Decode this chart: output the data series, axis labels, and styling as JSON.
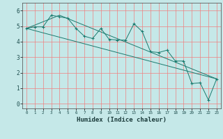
{
  "xlabel": "Humidex (Indice chaleur)",
  "bg_color": "#c5e8e8",
  "grid_color": "#f08080",
  "line_color": "#1a7a6e",
  "x_ticks": [
    0,
    1,
    2,
    3,
    4,
    5,
    6,
    7,
    8,
    9,
    10,
    11,
    12,
    13,
    14,
    15,
    16,
    17,
    18,
    19,
    20,
    21,
    22,
    23
  ],
  "y_ticks": [
    0,
    1,
    2,
    3,
    4,
    5,
    6
  ],
  "ylim": [
    -0.3,
    6.5
  ],
  "xlim": [
    -0.5,
    23.5
  ],
  "series1_x": [
    0,
    1,
    2,
    3,
    4,
    5,
    6,
    7,
    8,
    9,
    10,
    11,
    12,
    13,
    14,
    15,
    16,
    17,
    18,
    19,
    20,
    21,
    22,
    23
  ],
  "series1_y": [
    4.85,
    4.95,
    4.95,
    5.7,
    5.6,
    5.5,
    4.85,
    4.35,
    4.2,
    4.85,
    4.15,
    4.1,
    4.1,
    5.15,
    4.65,
    3.35,
    3.3,
    3.45,
    2.75,
    2.75,
    1.3,
    1.35,
    0.25,
    1.6
  ],
  "series2_x": [
    0,
    23
  ],
  "series2_y": [
    4.85,
    1.6
  ],
  "series3_x": [
    0,
    4,
    23
  ],
  "series3_y": [
    4.85,
    5.7,
    1.6
  ]
}
